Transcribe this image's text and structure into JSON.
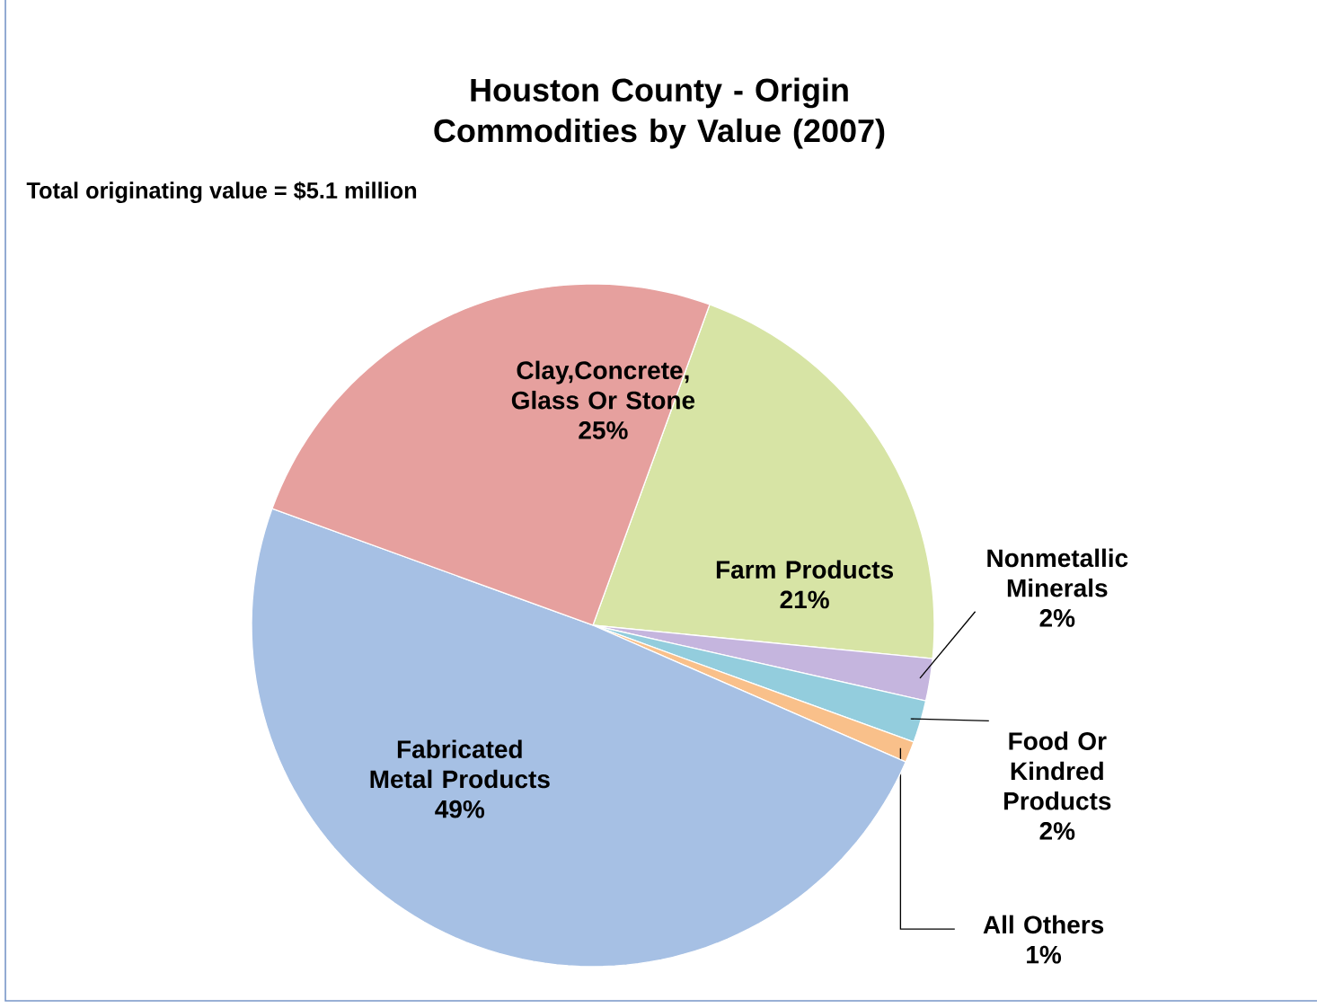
{
  "chart_data": {
    "type": "pie",
    "title": "Houston County - Origin Commodities by Value (2007)",
    "annotations": [
      "Total originating value = $5.1 million"
    ],
    "categories": [
      "Farm Products",
      "Nonmetallic Minerals",
      "Food Or Kindred Products",
      "All Others",
      "Fabricated Metal Products",
      "Clay,Concrete, Glass Or Stone"
    ],
    "values": [
      21,
      2,
      2,
      1,
      49,
      25
    ],
    "colors": [
      "#d7e4a5",
      "#c5b5de",
      "#93cddd",
      "#f9c08a",
      "#a6c0e4",
      "#e6a09e"
    ],
    "value_labels": [
      "21%",
      "2%",
      "2%",
      "1%",
      "49%",
      "25%"
    ]
  }
}
